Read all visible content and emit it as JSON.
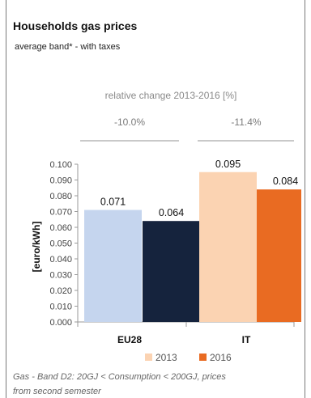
{
  "chart_data": {
    "type": "bar",
    "title": "Households gas prices",
    "subtitle": "average band* - with taxes",
    "change_header": "relative change 2013-2016 [%]",
    "relative_changes": [
      "-10.0%",
      "-11.4%"
    ],
    "ylabel": "[euro/kWh]",
    "categories": [
      "EU28",
      "IT"
    ],
    "ylim": [
      0,
      0.1
    ],
    "yticks": [
      "0.000",
      "0.010",
      "0.020",
      "0.030",
      "0.040",
      "0.050",
      "0.060",
      "0.070",
      "0.080",
      "0.090",
      "0.100"
    ],
    "series": [
      {
        "name": "2013",
        "color": "#c5d5ee",
        "highlight_color": "#fbd3b2",
        "values": [
          0.071,
          0.095
        ],
        "labels": [
          "0.071",
          "0.095"
        ]
      },
      {
        "name": "2016",
        "color": "#15233d",
        "highlight_color": "#e96b22",
        "values": [
          0.064,
          0.084
        ],
        "labels": [
          "0.064",
          "0.084"
        ]
      }
    ],
    "legend": {
      "position": "bottom",
      "entries": [
        "2013",
        "2016"
      ],
      "colors": [
        "#fbd3b2",
        "#e96b22"
      ]
    },
    "footnote": [
      "Gas - Band D2: 20GJ < Consumption < 200GJ, prices",
      "from second semester"
    ]
  }
}
